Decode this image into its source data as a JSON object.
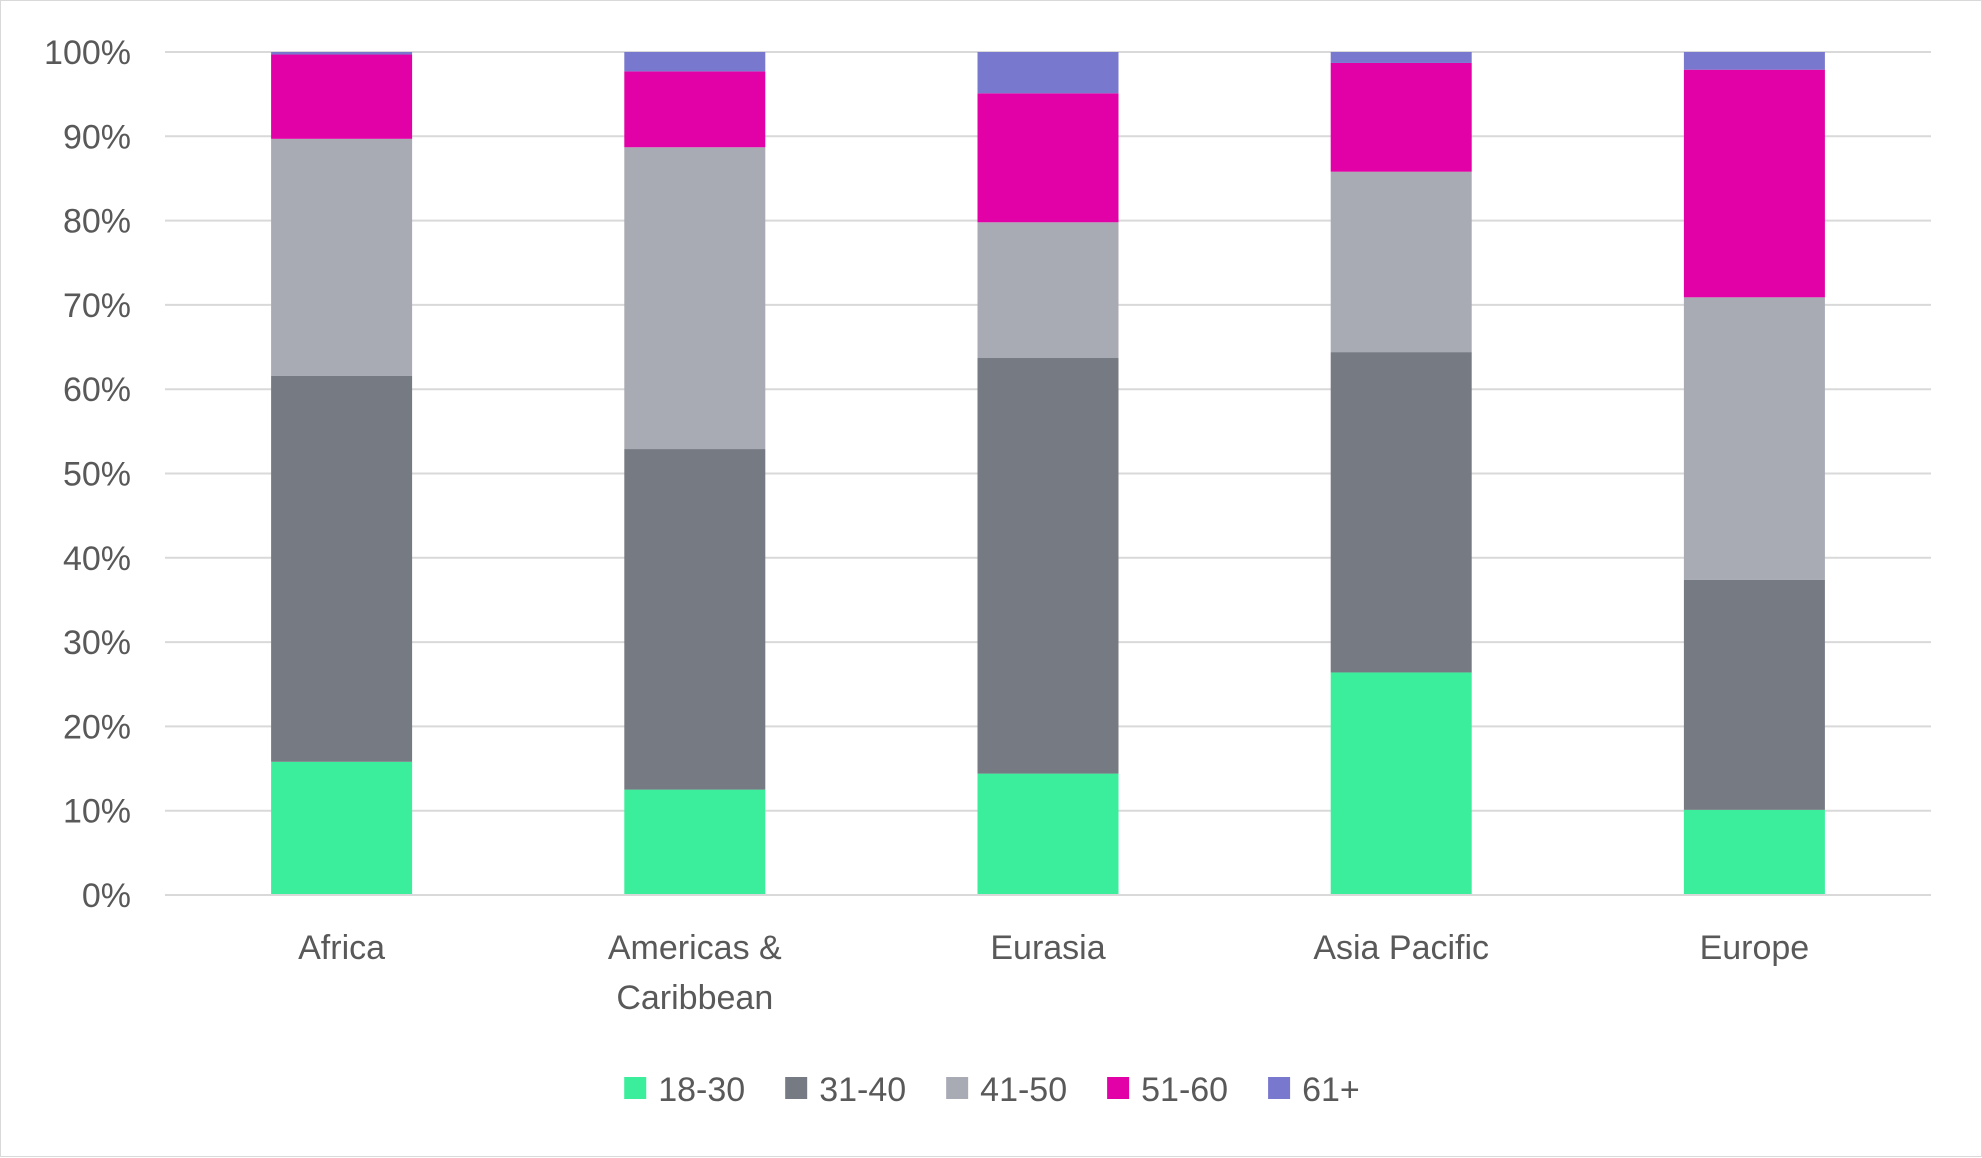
{
  "chart_data": {
    "type": "bar",
    "stacked": true,
    "percent_stacked": true,
    "title": "",
    "xlabel": "",
    "ylabel": "",
    "ylim": [
      0,
      100
    ],
    "y_ticks": [
      "0%",
      "10%",
      "20%",
      "30%",
      "40%",
      "50%",
      "60%",
      "70%",
      "80%",
      "90%",
      "100%"
    ],
    "grid": true,
    "legend_position": "bottom",
    "categories": [
      "Africa",
      "Americas & Caribbean",
      "Eurasia",
      "Asia Pacific",
      "Europe"
    ],
    "category_label_lines": [
      [
        "Africa"
      ],
      [
        "Americas &",
        "Caribbean"
      ],
      [
        "Eurasia"
      ],
      [
        "Asia Pacific"
      ],
      [
        "Europe"
      ]
    ],
    "series": [
      {
        "name": "18-30",
        "color": "#3AEE9B",
        "values": [
          15.8,
          12.5,
          14.4,
          26.4,
          10.1
        ]
      },
      {
        "name": "31-40",
        "color": "#767A83",
        "values": [
          45.8,
          40.4,
          49.3,
          38.0,
          27.3
        ]
      },
      {
        "name": "41-50",
        "color": "#A8AAB4",
        "values": [
          28.1,
          35.8,
          16.1,
          21.4,
          33.5
        ]
      },
      {
        "name": "51-60",
        "color": "#E201A6",
        "values": [
          10.0,
          9.0,
          15.3,
          12.9,
          27.0
        ]
      },
      {
        "name": "61+",
        "color": "#7878CF",
        "values": [
          0.3,
          2.3,
          4.9,
          1.3,
          2.1
        ]
      }
    ]
  }
}
